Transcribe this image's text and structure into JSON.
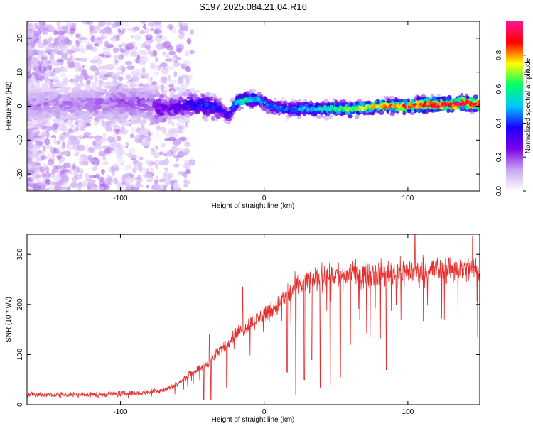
{
  "title": "S197.2025.084.21.04.R16",
  "chart_data": [
    {
      "type": "heatmap",
      "xlabel": "Height of straight line (km)",
      "ylabel": "Frequency (Hz)",
      "xlim": [
        -165,
        150
      ],
      "ylim": [
        -25,
        25
      ],
      "x_ticks": [
        -100,
        0,
        100
      ],
      "x_tick_labels": [
        "-100",
        "0",
        "100"
      ],
      "y_ticks": [
        -20,
        -10,
        0,
        10,
        20
      ],
      "y_tick_labels": [
        "-20",
        "-10",
        "0",
        "10",
        "20"
      ],
      "colorbar": {
        "label": "Normalized spectral amplitude",
        "range": [
          0,
          1
        ],
        "ticks": [
          0.0,
          0.2,
          0.4,
          0.6,
          0.8
        ],
        "tick_labels": [
          "0.0",
          "0.2",
          "0.4",
          "0.6",
          "0.8"
        ],
        "colors": [
          "#ffffff",
          "#c9a6f2",
          "#7a00e6",
          "#1a00ff",
          "#00c8ff",
          "#00ff66",
          "#ffff00",
          "#ff0000",
          "#ff1493"
        ]
      },
      "ridge": {
        "x": [
          -165,
          -140,
          -120,
          -100,
          -80,
          -70,
          -60,
          -50,
          -40,
          -30,
          -25,
          -20,
          -15,
          -10,
          -5,
          0,
          5,
          10,
          20,
          30,
          40,
          50,
          60,
          70,
          80,
          90,
          100,
          110,
          120,
          130,
          140,
          150
        ],
        "freq": [
          0.5,
          0.5,
          0.5,
          1,
          0.5,
          -1,
          0,
          0.5,
          0,
          -1,
          -3,
          1,
          1.5,
          2,
          2,
          1,
          0,
          -0.5,
          -1,
          -0.5,
          -1,
          -0.5,
          -1,
          -0.5,
          0,
          0,
          0,
          0.5,
          0.5,
          0.5,
          1,
          0.5
        ],
        "amplitude": [
          0.15,
          0.15,
          0.15,
          0.18,
          0.2,
          0.25,
          0.3,
          0.35,
          0.4,
          0.35,
          0.3,
          0.5,
          0.6,
          0.55,
          0.5,
          0.45,
          0.45,
          0.45,
          0.45,
          0.5,
          0.55,
          0.6,
          0.65,
          0.7,
          0.75,
          0.8,
          0.85,
          0.9,
          0.9,
          0.95,
          0.95,
          0.9
        ]
      }
    },
    {
      "type": "line",
      "xlabel": "Height of straight line (km)",
      "ylabel": "SNR (10 * v/v)",
      "xlim": [
        -165,
        150
      ],
      "ylim": [
        0,
        340
      ],
      "x_ticks": [
        -100,
        0,
        100
      ],
      "x_tick_labels": [
        "-100",
        "0",
        "100"
      ],
      "y_ticks": [
        0,
        100,
        200,
        300
      ],
      "y_tick_labels": [
        "0",
        "100",
        "200",
        "300"
      ],
      "series": [
        {
          "color": "#e63030",
          "trend_x": [
            -165,
            -140,
            -120,
            -100,
            -80,
            -70,
            -60,
            -50,
            -40,
            -30,
            -20,
            -10,
            0,
            10,
            20,
            30,
            40,
            50,
            60,
            80,
            100,
            120,
            150
          ],
          "trend_y": [
            20,
            20,
            20,
            22,
            25,
            30,
            42,
            65,
            80,
            110,
            140,
            160,
            180,
            200,
            230,
            245,
            255,
            260,
            260,
            262,
            265,
            270,
            272
          ],
          "dips": [
            {
              "x": -42,
              "y": 10
            },
            {
              "x": -37,
              "y": 10
            },
            {
              "x": -26,
              "y": 35
            },
            {
              "x": 16,
              "y": 65
            },
            {
              "x": 22,
              "y": 20
            },
            {
              "x": 28,
              "y": 50
            },
            {
              "x": 33,
              "y": 90
            },
            {
              "x": 39,
              "y": 35
            },
            {
              "x": 46,
              "y": 40
            },
            {
              "x": 53,
              "y": 55
            },
            {
              "x": 60,
              "y": 120
            },
            {
              "x": 85,
              "y": 70
            },
            {
              "x": 92,
              "y": 200
            }
          ],
          "spikes": [
            {
              "x": -38,
              "y": 140
            },
            {
              "x": -15,
              "y": 235
            },
            {
              "x": 105,
              "y": 340
            },
            {
              "x": 145,
              "y": 335
            }
          ]
        }
      ]
    }
  ]
}
